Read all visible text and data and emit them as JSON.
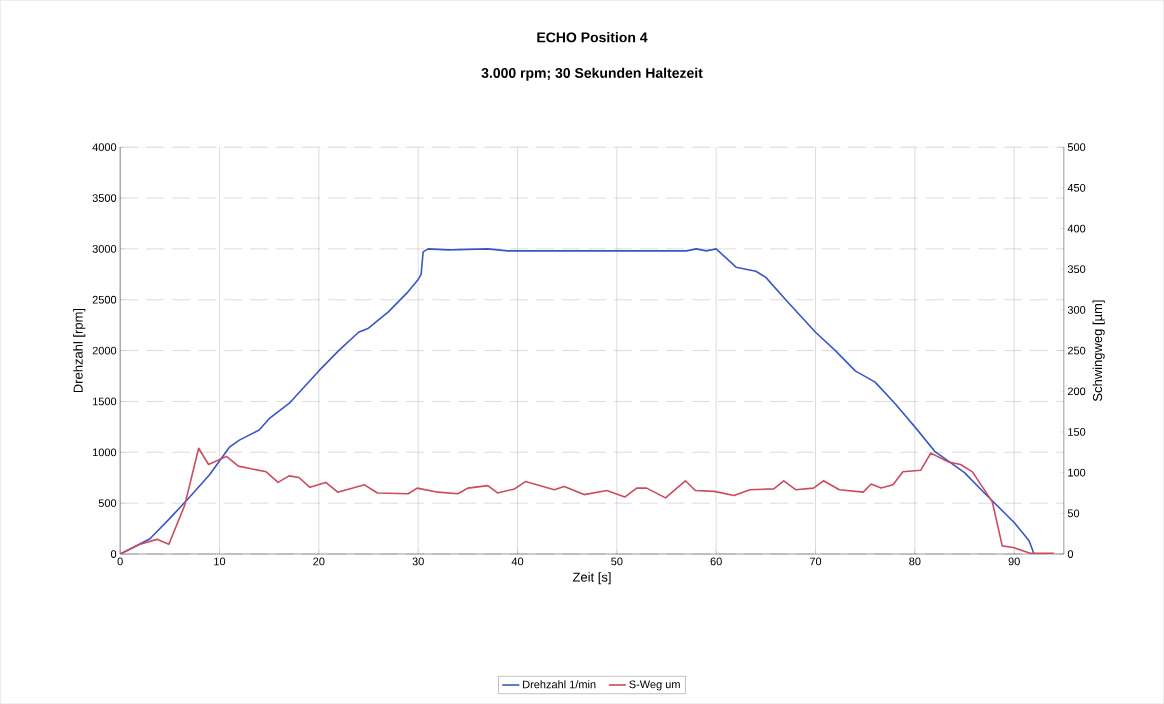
{
  "chart_data": {
    "type": "line",
    "title": "ECHO Position 4",
    "subtitle": "3.000 rpm; 30 Sekunden Haltezeit",
    "xlabel": "Zeit [s]",
    "ylabel": "Drehzahl [rpm]",
    "y2label": "Schwingweg [µm]",
    "xlim": [
      0,
      95
    ],
    "xticks": [
      0,
      10,
      20,
      30,
      40,
      50,
      60,
      70,
      80,
      90
    ],
    "ylim": [
      0,
      4000
    ],
    "yticks": [
      0,
      500,
      1000,
      1500,
      2000,
      2500,
      3000,
      3500,
      4000
    ],
    "y2lim": [
      0,
      500
    ],
    "y2ticks": [
      0,
      50,
      100,
      150,
      200,
      250,
      300,
      350,
      400,
      450,
      500
    ],
    "grid": true,
    "legend": "bottom",
    "marker": "none",
    "line_style": "solid",
    "series": [
      {
        "name": "Drehzahl 1/min",
        "color": "#3a56c4",
        "x": [
          0,
          3,
          5,
          7,
          9,
          11,
          12,
          14,
          15,
          17,
          20,
          22,
          24,
          25,
          27,
          29,
          30,
          30.3,
          30.5,
          31,
          33,
          37,
          39,
          50,
          57,
          58,
          59,
          60,
          62,
          64,
          65,
          67,
          70,
          72,
          74,
          76,
          78,
          80,
          82,
          85,
          87,
          90,
          91.5,
          92,
          94
        ],
        "values": [
          0,
          150,
          350,
          560,
          780,
          1050,
          1120,
          1220,
          1330,
          1480,
          1800,
          2000,
          2180,
          2220,
          2380,
          2580,
          2700,
          2750,
          2970,
          3000,
          2990,
          3000,
          2980,
          2980,
          2980,
          3000,
          2980,
          3000,
          2820,
          2780,
          2720,
          2500,
          2180,
          2000,
          1800,
          1690,
          1480,
          1250,
          1010,
          800,
          600,
          310,
          130,
          0,
          0
        ]
      },
      {
        "name": "S-Weg um",
        "color": "#cc4a5e",
        "axis": "y2",
        "x": [
          0,
          2,
          3.7,
          4.9,
          6.5,
          7.9,
          8.9,
          10.7,
          11.9,
          14.7,
          15.9,
          17,
          18,
          19.1,
          20.7,
          21.9,
          24.6,
          25.9,
          29,
          29.9,
          32,
          34,
          35,
          37,
          38,
          39.7,
          40.8,
          43.7,
          44.7,
          46.7,
          49,
          50.8,
          52,
          53,
          54.9,
          56.9,
          57.9,
          59.8,
          61.8,
          63.4,
          65.8,
          66.8,
          68,
          69.8,
          70.8,
          72.4,
          74.8,
          75.6,
          76.6,
          77.8,
          78.8,
          80.6,
          81.6,
          83.4,
          84.6,
          85.8,
          87.8,
          88.8,
          89.9,
          91.6,
          94
        ],
        "values": [
          0,
          12,
          18,
          12,
          60,
          130,
          110,
          120,
          108,
          101,
          88,
          96,
          94,
          82,
          88,
          76,
          85,
          75,
          74,
          81,
          76,
          74,
          81,
          84,
          75,
          80,
          89,
          79,
          83,
          73,
          78,
          70,
          81,
          81,
          69,
          90,
          78,
          77,
          72,
          79,
          80,
          90,
          79,
          81,
          90,
          79,
          76,
          86,
          81,
          85,
          101,
          103,
          124,
          113,
          110,
          101,
          64,
          10,
          8,
          1,
          1
        ]
      }
    ]
  }
}
